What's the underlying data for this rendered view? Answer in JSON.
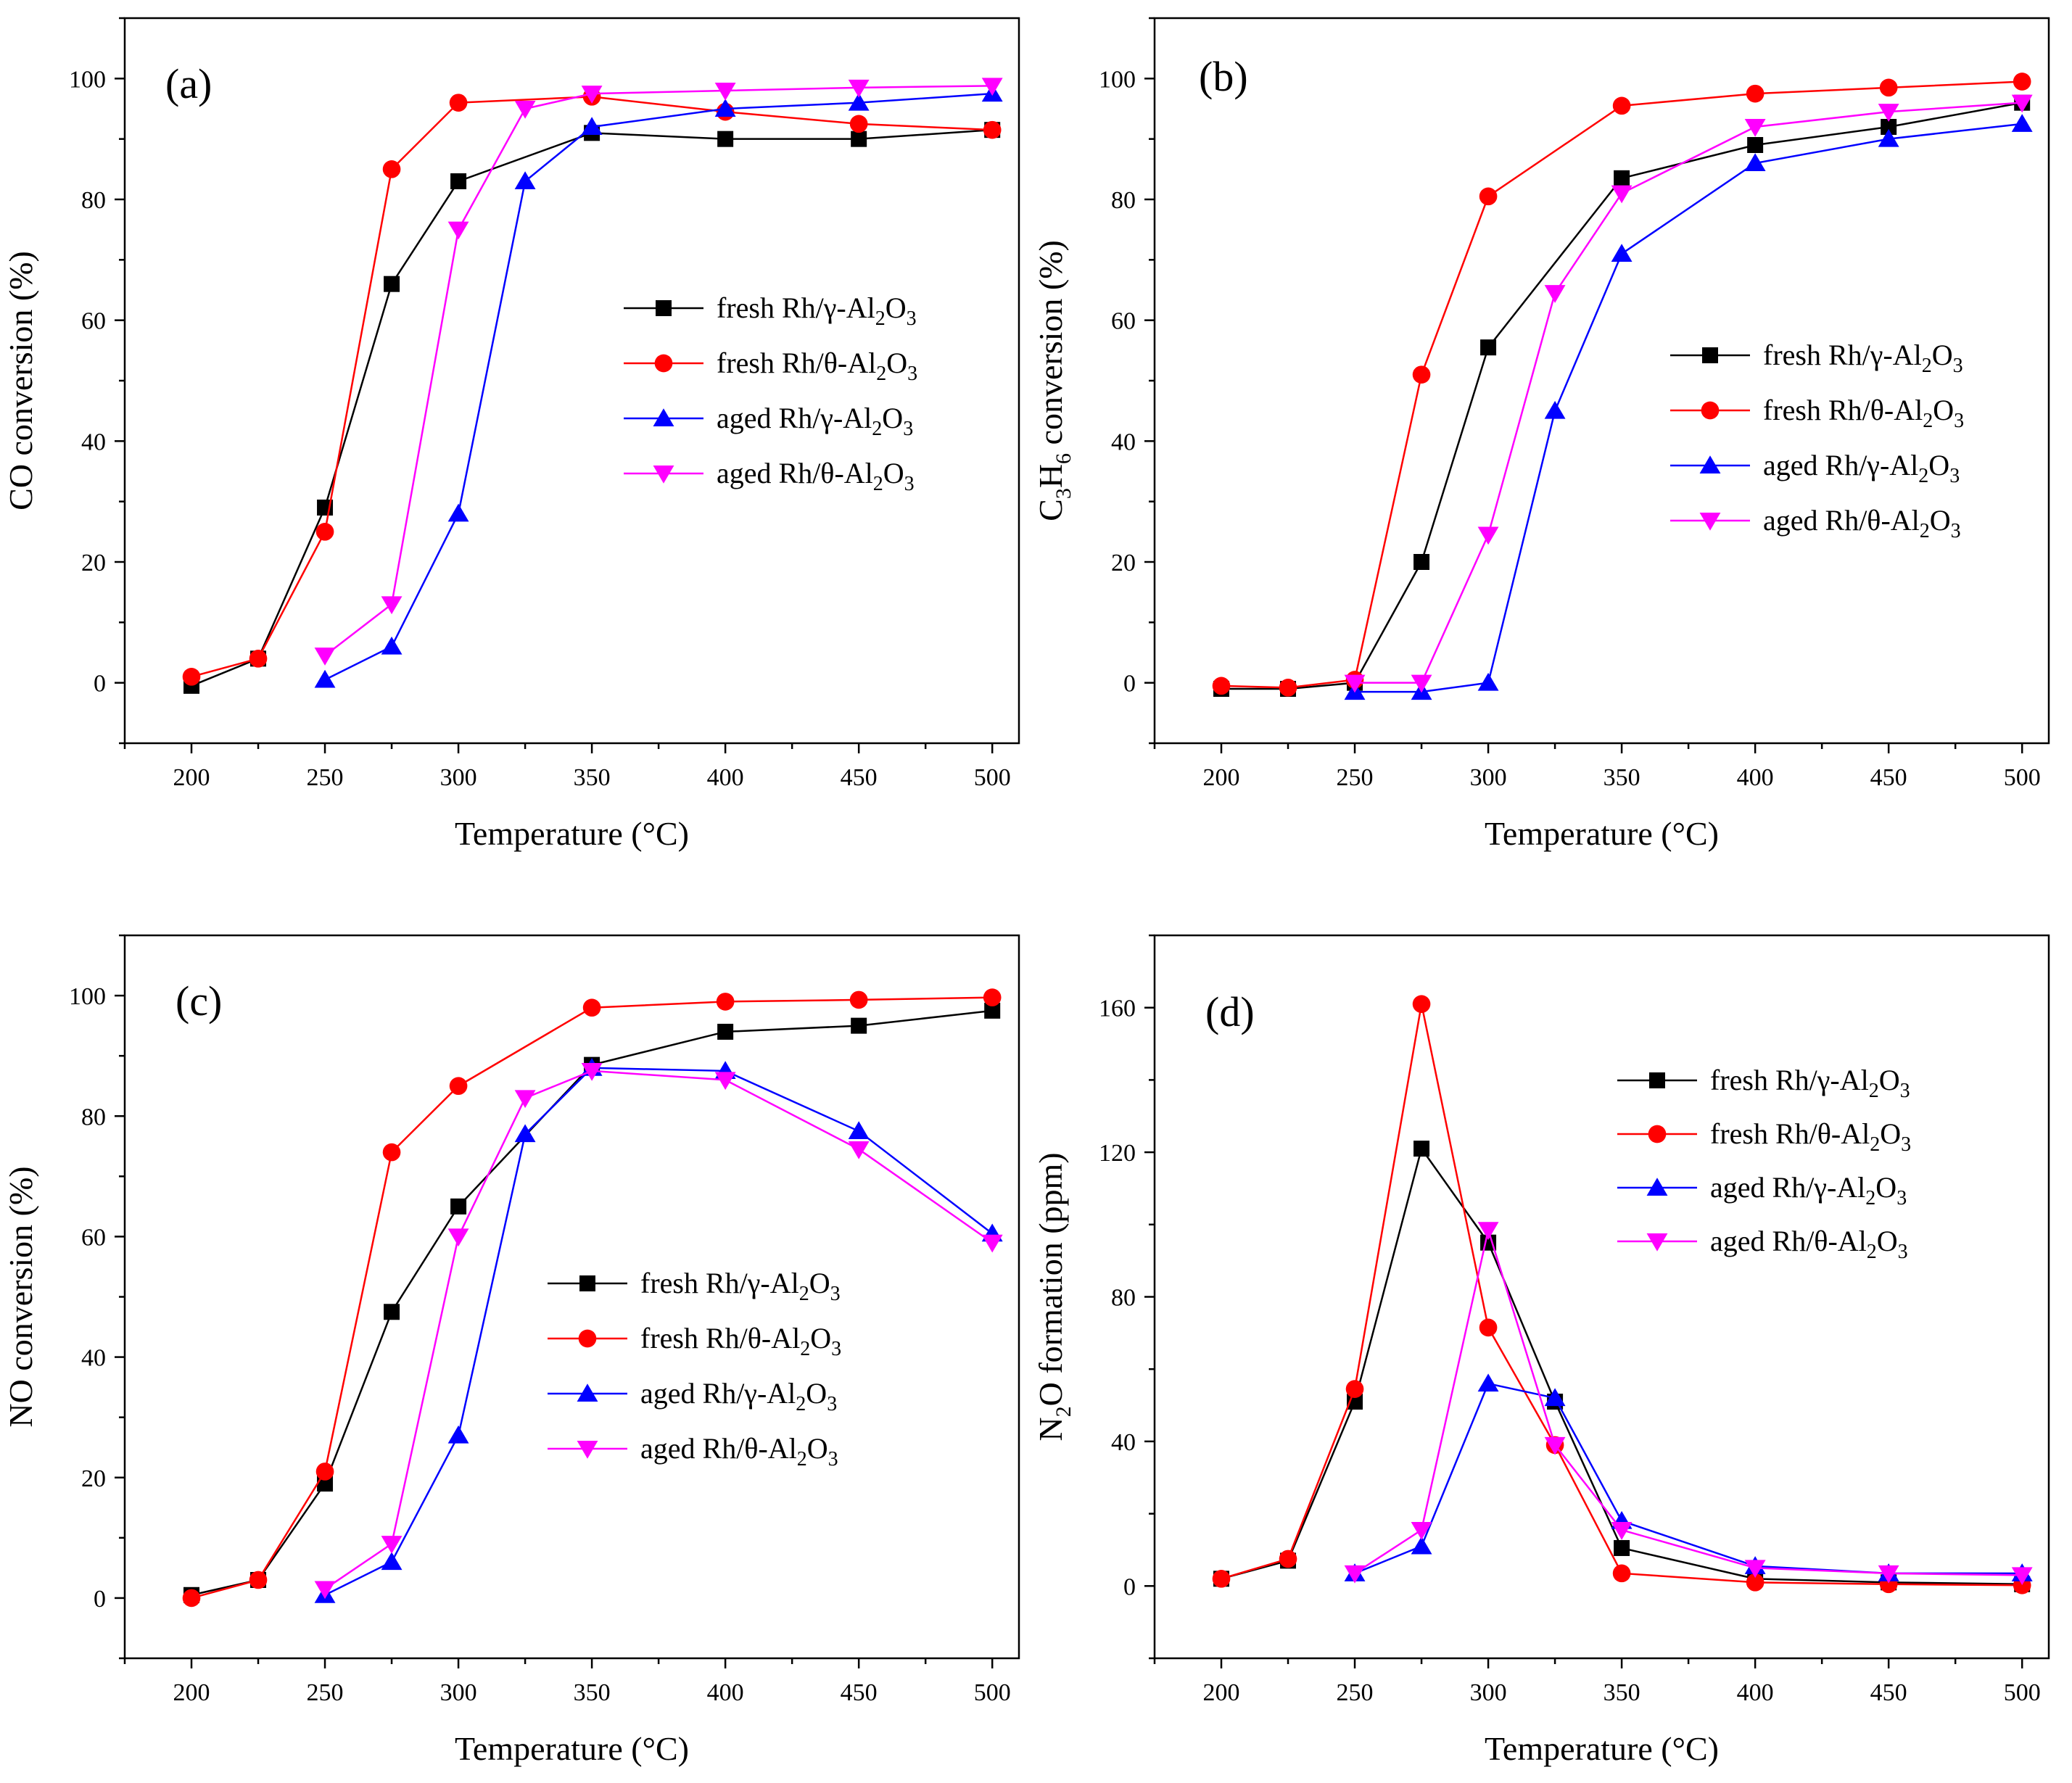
{
  "figure": {
    "colors": {
      "fresh_gamma": "#000000",
      "fresh_theta": "#ff0000",
      "aged_gamma": "#0000ff",
      "aged_theta": "#ff00ff"
    }
  },
  "chart_data": [
    {
      "type": "line",
      "panel_label": "(a)",
      "xlabel": "Temperature (°C)",
      "ylabel": "CO conversion (%)",
      "xlim": [
        175,
        510
      ],
      "ylim": [
        -10,
        110
      ],
      "xticks": [
        200,
        250,
        300,
        350,
        400,
        450,
        500
      ],
      "yticks": [
        0,
        20,
        40,
        60,
        80,
        100
      ],
      "legend_position": "middle-right",
      "series": [
        {
          "name": "fresh Rh/γ-Al2O3",
          "label_main": "fresh Rh/γ-Al",
          "label_sub1": "2",
          "label_mid": "O",
          "label_sub2": "3",
          "color": "#000000",
          "marker": "square",
          "x": [
            200,
            225,
            250,
            275,
            300,
            350,
            400,
            450,
            500
          ],
          "y": [
            -0.5,
            4,
            29,
            66,
            83,
            91,
            90,
            90,
            91.5
          ]
        },
        {
          "name": "fresh Rh/θ-Al2O3",
          "label_main": "fresh Rh/θ-Al",
          "label_sub1": "2",
          "label_mid": "O",
          "label_sub2": "3",
          "color": "#ff0000",
          "marker": "circle",
          "x": [
            200,
            225,
            250,
            275,
            300,
            350,
            400,
            450,
            500
          ],
          "y": [
            1,
            4,
            25,
            85,
            96,
            97,
            94.5,
            92.5,
            91.5
          ]
        },
        {
          "name": "aged Rh/γ-Al2O3",
          "label_main": "aged Rh/γ-Al",
          "label_sub1": "2",
          "label_mid": "O",
          "label_sub2": "3",
          "color": "#0000ff",
          "marker": "triangle-up",
          "x": [
            250,
            275,
            300,
            325,
            350,
            400,
            450,
            500
          ],
          "y": [
            0.5,
            6,
            28,
            83,
            92,
            95,
            96,
            97.5
          ]
        },
        {
          "name": "aged Rh/θ-Al2O3",
          "label_main": "aged Rh/θ-Al",
          "label_sub1": "2",
          "label_mid": "O",
          "label_sub2": "3",
          "color": "#ff00ff",
          "marker": "triangle-down",
          "x": [
            250,
            275,
            300,
            325,
            350,
            400,
            450,
            500
          ],
          "y": [
            4.5,
            13,
            75,
            95,
            97.5,
            98,
            98.5,
            98.8
          ]
        }
      ]
    },
    {
      "type": "line",
      "panel_label": "(b)",
      "xlabel": "Temperature (°C)",
      "ylabel": "C3H6 conversion (%)",
      "ylabel_parts": [
        "C",
        "3",
        "H",
        "6",
        " conversion (%)"
      ],
      "xlim": [
        175,
        510
      ],
      "ylim": [
        -10,
        110
      ],
      "xticks": [
        200,
        250,
        300,
        350,
        400,
        450,
        500
      ],
      "yticks": [
        0,
        20,
        40,
        60,
        80,
        100
      ],
      "legend_position": "middle-right",
      "series": [
        {
          "name": "fresh Rh/γ-Al2O3",
          "label_main": "fresh Rh/γ-Al",
          "label_sub1": "2",
          "label_mid": "O",
          "label_sub2": "3",
          "color": "#000000",
          "marker": "square",
          "x": [
            200,
            225,
            250,
            275,
            300,
            350,
            400,
            450,
            500
          ],
          "y": [
            -1,
            -1,
            0,
            20,
            55.5,
            83.5,
            89,
            92,
            96
          ]
        },
        {
          "name": "fresh Rh/θ-Al2O3",
          "label_main": "fresh Rh/θ-Al",
          "label_sub1": "2",
          "label_mid": "O",
          "label_sub2": "3",
          "color": "#ff0000",
          "marker": "circle",
          "x": [
            200,
            225,
            250,
            275,
            300,
            350,
            400,
            450,
            500
          ],
          "y": [
            -0.5,
            -0.8,
            0.5,
            51,
            80.5,
            95.5,
            97.5,
            98.5,
            99.5
          ]
        },
        {
          "name": "aged Rh/γ-Al2O3",
          "label_main": "aged Rh/γ-Al",
          "label_sub1": "2",
          "label_mid": "O",
          "label_sub2": "3",
          "color": "#0000ff",
          "marker": "triangle-up",
          "x": [
            250,
            275,
            300,
            325,
            350,
            400,
            450,
            500
          ],
          "y": [
            -1.5,
            -1.5,
            0,
            45,
            71,
            86,
            90,
            92.5
          ]
        },
        {
          "name": "aged Rh/θ-Al2O3",
          "label_main": "aged Rh/θ-Al",
          "label_sub1": "2",
          "label_mid": "O",
          "label_sub2": "3",
          "color": "#ff00ff",
          "marker": "triangle-down",
          "x": [
            250,
            275,
            300,
            325,
            350,
            400,
            450,
            500
          ],
          "y": [
            0,
            0,
            24.5,
            64.5,
            81,
            92,
            94.5,
            96
          ]
        }
      ]
    },
    {
      "type": "line",
      "panel_label": "(c)",
      "xlabel": "Temperature (°C)",
      "ylabel": "NO conversion (%)",
      "xlim": [
        175,
        510
      ],
      "ylim": [
        -10,
        110
      ],
      "xticks": [
        200,
        250,
        300,
        350,
        400,
        450,
        500
      ],
      "yticks": [
        0,
        20,
        40,
        60,
        80,
        100
      ],
      "legend_position": "lower-right",
      "series": [
        {
          "name": "fresh Rh/γ-Al2O3",
          "label_main": "fresh Rh/γ-Al",
          "label_sub1": "2",
          "label_mid": "O",
          "label_sub2": "3",
          "color": "#000000",
          "marker": "square",
          "x": [
            200,
            225,
            250,
            275,
            300,
            350,
            400,
            450,
            500
          ],
          "y": [
            0.5,
            3,
            19,
            47.5,
            65,
            88.5,
            94,
            95,
            97.5
          ]
        },
        {
          "name": "fresh Rh/θ-Al2O3",
          "label_main": "fresh Rh/θ-Al",
          "label_sub1": "2",
          "label_mid": "O",
          "label_sub2": "3",
          "color": "#ff0000",
          "marker": "circle",
          "x": [
            200,
            225,
            250,
            275,
            300,
            350,
            400,
            450,
            500
          ],
          "y": [
            0,
            3,
            21,
            74,
            85,
            98,
            99,
            99.3,
            99.7
          ]
        },
        {
          "name": "aged Rh/γ-Al2O3",
          "label_main": "aged Rh/γ-Al",
          "label_sub1": "2",
          "label_mid": "O",
          "label_sub2": "3",
          "color": "#0000ff",
          "marker": "triangle-up",
          "x": [
            250,
            275,
            300,
            325,
            350,
            400,
            450,
            500
          ],
          "y": [
            0.5,
            6,
            27,
            77,
            88,
            87.5,
            77.5,
            60.5
          ]
        },
        {
          "name": "aged Rh/θ-Al2O3",
          "label_main": "aged Rh/θ-Al",
          "label_sub1": "2",
          "label_mid": "O",
          "label_sub2": "3",
          "color": "#ff00ff",
          "marker": "triangle-down",
          "x": [
            250,
            275,
            300,
            325,
            350,
            400,
            450,
            500
          ],
          "y": [
            1.5,
            9,
            60,
            83,
            87.5,
            86,
            74.5,
            59
          ]
        }
      ]
    },
    {
      "type": "line",
      "panel_label": "(d)",
      "xlabel": "Temperature (°C)",
      "ylabel": "N2O formation (ppm)",
      "ylabel_parts": [
        "N",
        "2",
        "O formation (ppm)"
      ],
      "xlim": [
        175,
        510
      ],
      "ylim": [
        -20,
        180
      ],
      "xticks": [
        200,
        250,
        300,
        350,
        400,
        450,
        500
      ],
      "yticks": [
        0,
        40,
        80,
        120,
        160
      ],
      "legend_position": "upper-right",
      "series": [
        {
          "name": "fresh Rh/γ-Al2O3",
          "label_main": "fresh Rh/γ-Al",
          "label_sub1": "2",
          "label_mid": "O",
          "label_sub2": "3",
          "color": "#000000",
          "marker": "square",
          "x": [
            200,
            225,
            250,
            275,
            300,
            325,
            350,
            400,
            450,
            500
          ],
          "y": [
            2,
            7,
            51,
            121,
            95,
            51,
            10.5,
            2,
            1,
            0.5
          ]
        },
        {
          "name": "fresh Rh/θ-Al2O3",
          "label_main": "fresh Rh/θ-Al",
          "label_sub1": "2",
          "label_mid": "O",
          "label_sub2": "3",
          "color": "#ff0000",
          "marker": "circle",
          "x": [
            200,
            225,
            250,
            275,
            300,
            325,
            350,
            400,
            450,
            500
          ],
          "y": [
            2,
            7.5,
            54.5,
            161,
            71.5,
            39,
            3.5,
            1,
            0.5,
            0.2
          ]
        },
        {
          "name": "aged Rh/γ-Al2O3",
          "label_main": "aged Rh/γ-Al",
          "label_sub1": "2",
          "label_mid": "O",
          "label_sub2": "3",
          "color": "#0000ff",
          "marker": "triangle-up",
          "x": [
            250,
            275,
            300,
            325,
            350,
            400,
            450,
            500
          ],
          "y": [
            3.5,
            11,
            56,
            52,
            18,
            5.5,
            3.5,
            3.5
          ]
        },
        {
          "name": "aged Rh/θ-Al2O3",
          "label_main": "aged Rh/θ-Al",
          "label_sub1": "2",
          "label_mid": "O",
          "label_sub2": "3",
          "color": "#ff00ff",
          "marker": "triangle-down",
          "x": [
            250,
            275,
            300,
            325,
            350,
            400,
            450,
            500
          ],
          "y": [
            3.5,
            15.5,
            98.5,
            39,
            15.5,
            5,
            3.5,
            3
          ]
        }
      ]
    }
  ]
}
